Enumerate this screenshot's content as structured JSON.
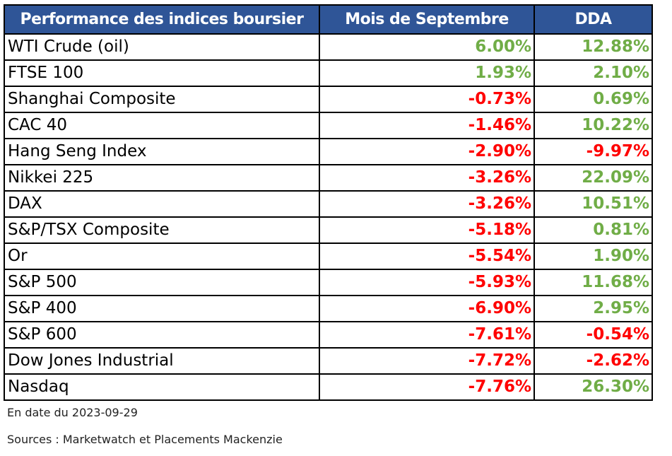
{
  "table": {
    "headers": {
      "name": "Performance des indices boursier",
      "month": "Mois de Septembre",
      "ytd": "DDA"
    },
    "rows": [
      {
        "name": "WTI Crude (oil)",
        "month": "6.00%",
        "ytd": "12.88%"
      },
      {
        "name": "FTSE 100",
        "month": "1.93%",
        "ytd": "2.10%"
      },
      {
        "name": "Shanghai Composite",
        "month": "-0.73%",
        "ytd": "0.69%"
      },
      {
        "name": "CAC 40",
        "month": "-1.46%",
        "ytd": "10.22%"
      },
      {
        "name": "Hang Seng Index",
        "month": "-2.90%",
        "ytd": "-9.97%"
      },
      {
        "name": "Nikkei 225",
        "month": "-3.26%",
        "ytd": "22.09%"
      },
      {
        "name": "DAX",
        "month": "-3.26%",
        "ytd": "10.51%"
      },
      {
        "name": "S&P/TSX Composite",
        "month": "-5.18%",
        "ytd": "0.81%"
      },
      {
        "name": "Or",
        "month": "-5.54%",
        "ytd": "1.90%"
      },
      {
        "name": "S&P 500",
        "month": "-5.93%",
        "ytd": "11.68%"
      },
      {
        "name": "S&P 400",
        "month": "-6.90%",
        "ytd": "2.95%"
      },
      {
        "name": "S&P 600",
        "month": "-7.61%",
        "ytd": "-0.54%"
      },
      {
        "name": "Dow Jones Industrial",
        "month": "-7.72%",
        "ytd": "-2.62%"
      },
      {
        "name": "Nasdaq",
        "month": "-7.76%",
        "ytd": "26.30%"
      }
    ]
  },
  "footer": {
    "date_note": "En date du 2023-09-29",
    "sources_note": "Sources : Marketwatch et Placements Mackenzie"
  },
  "colors": {
    "header_bg": "#2f5597",
    "positive": "#70ad47",
    "negative": "#ff0000"
  }
}
